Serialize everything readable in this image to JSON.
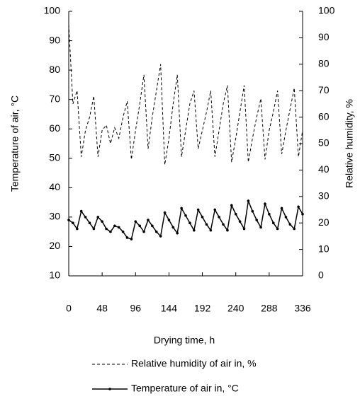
{
  "chart_data": {
    "type": "line",
    "x_label": "Drying time, h",
    "y_label": "Temperature of air, °C",
    "y2_label": "Relative humidity, %",
    "x": [
      0,
      6,
      12,
      18,
      24,
      30,
      36,
      42,
      48,
      54,
      60,
      66,
      72,
      78,
      84,
      90,
      96,
      102,
      108,
      114,
      120,
      126,
      132,
      138,
      144,
      150,
      156,
      162,
      168,
      174,
      180,
      186,
      192,
      198,
      204,
      210,
      216,
      222,
      228,
      234,
      240,
      246,
      252,
      258,
      264,
      270,
      276,
      282,
      288,
      294,
      300,
      306,
      312,
      318,
      324,
      330,
      336
    ],
    "xlim": [
      0,
      336
    ],
    "xticks": [
      0,
      48,
      96,
      144,
      192,
      240,
      288,
      336
    ],
    "ylim": [
      10,
      100
    ],
    "yticks": [
      10,
      20,
      30,
      40,
      50,
      60,
      70,
      80,
      90,
      100
    ],
    "y2lim": [
      0,
      100
    ],
    "y2ticks": [
      0,
      10,
      20,
      30,
      40,
      50,
      60,
      70,
      80,
      90,
      100
    ],
    "series": [
      {
        "name": "Relative humidity of air in, %",
        "color": "#000000",
        "axis": "y2",
        "dashed": true,
        "values": [
          95,
          65,
          70,
          45,
          55,
          60,
          68,
          45,
          55,
          57,
          50,
          56,
          52,
          60,
          66,
          44,
          55,
          65,
          76,
          48,
          60,
          70,
          80,
          42,
          52,
          65,
          76,
          45,
          55,
          65,
          70,
          48,
          55,
          62,
          70,
          45,
          55,
          65,
          72,
          43,
          52,
          62,
          72,
          43,
          52,
          60,
          67,
          44,
          55,
          62,
          70,
          46,
          55,
          63,
          71,
          45,
          55
        ]
      },
      {
        "name": "Temperature of air in, °C",
        "color": "#000000",
        "markers": true,
        "values": [
          29,
          28,
          26,
          32,
          30,
          28,
          26,
          30,
          28.5,
          26,
          25,
          27,
          26.5,
          25,
          23,
          22.5,
          28.5,
          27,
          25,
          29,
          27,
          25,
          23.5,
          31.5,
          29,
          26.5,
          24.5,
          33,
          30.5,
          28,
          25.5,
          32.5,
          30,
          27.5,
          25.5,
          32.5,
          30,
          27.5,
          25.5,
          34,
          31,
          28.5,
          26,
          35.5,
          32,
          29,
          26.5,
          34.5,
          31,
          28,
          26,
          33,
          30,
          27.5,
          26,
          33.5,
          31
        ]
      }
    ]
  }
}
